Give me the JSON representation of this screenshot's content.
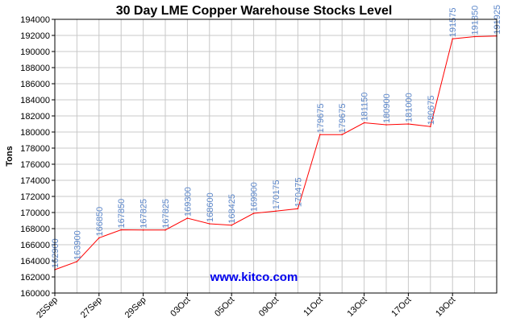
{
  "chart_data": {
    "type": "line",
    "title": "30 Day LME Copper Warehouse Stocks Level",
    "ylabel": "Tons",
    "xlabel": "",
    "ylim": [
      160000,
      194000
    ],
    "yticks": [
      160000,
      162000,
      164000,
      166000,
      168000,
      170000,
      172000,
      174000,
      176000,
      178000,
      180000,
      182000,
      184000,
      186000,
      188000,
      190000,
      192000,
      194000
    ],
    "x_tick_labels": [
      "25Sep",
      "27Sep",
      "29Sep",
      "03Oct",
      "05Oct",
      "09Oct",
      "11Oct",
      "13Oct",
      "17Oct",
      "19Oct"
    ],
    "series": [
      {
        "values": [
          162900,
          163900,
          166850,
          167850,
          167825,
          167825,
          169300,
          168600,
          168425,
          169900,
          170175,
          170475,
          179675,
          179675,
          181150,
          180900,
          181000,
          180675,
          191575,
          191850,
          191925
        ],
        "labels": [
          "162900",
          "163900",
          "166850",
          "167850",
          "167825",
          "167825",
          "169300",
          "168600",
          "168425",
          "169900",
          "170175",
          "170475",
          "179675",
          "179675",
          "181150",
          "180900",
          "181000",
          "180675",
          "191575",
          "191850",
          "191925"
        ],
        "color": "#ff0000"
      }
    ],
    "grid": true,
    "watermark": "www.kitco.com",
    "colors": {
      "line": "#ff0000",
      "data_label": "#5b86c9",
      "grid": "#c8c8c8",
      "watermark": "#0000ee"
    }
  }
}
